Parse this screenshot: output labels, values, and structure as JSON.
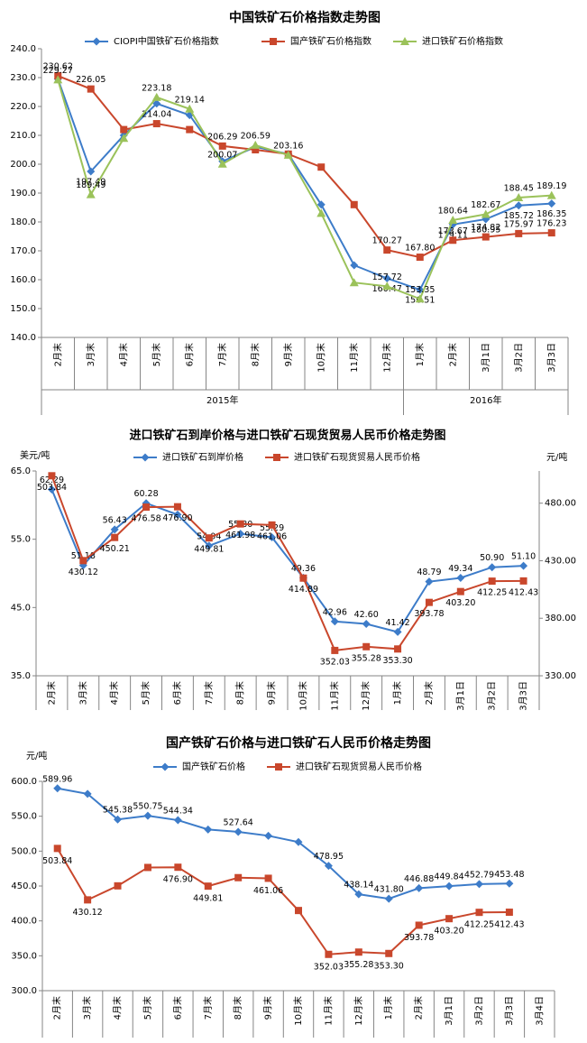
{
  "chart_data": [
    {
      "type": "line",
      "title": "中国铁矿石价格指数走势图",
      "categories": [
        "2月末",
        "3月末",
        "4月末",
        "5月末",
        "6月末",
        "7月末",
        "8月末",
        "9月末",
        "10月末",
        "11月末",
        "12月末",
        "1月末",
        "2月末",
        "3月1日",
        "3月2日",
        "3月3日"
      ],
      "category_groups": [
        {
          "label": "2015年",
          "count": 11
        },
        {
          "label": "2016年",
          "count": 5
        }
      ],
      "ylim": [
        140,
        240
      ],
      "yticks": [
        {
          "value": 140,
          "label": "140.0"
        },
        {
          "value": 150,
          "label": "150.0"
        },
        {
          "value": 160,
          "label": "160.0"
        },
        {
          "value": 170,
          "label": "170.0"
        },
        {
          "value": 180,
          "label": "180.0"
        },
        {
          "value": 190,
          "label": "190.0"
        },
        {
          "value": 200,
          "label": "200.0"
        },
        {
          "value": 210,
          "label": "210.0"
        },
        {
          "value": 220,
          "label": "220.0"
        },
        {
          "value": 230,
          "label": "230.0"
        },
        {
          "value": 240,
          "label": "240.0"
        }
      ],
      "grid": false,
      "series": [
        {
          "name": "CIOPI中国铁矿石价格指数",
          "color": "#3d7cc9",
          "marker": "diamond",
          "values": [
            229.5,
            197.49,
            210,
            221,
            217,
            201,
            206,
            203.5,
            186,
            165,
            160.47,
            156.51,
            179.11,
            180.95,
            185.72,
            186.35
          ],
          "value_labels": [
            null,
            "197.49",
            null,
            null,
            null,
            null,
            null,
            null,
            null,
            null,
            "160.47",
            "156.51",
            "179.11",
            "180.95",
            "185.72",
            "186.35"
          ]
        },
        {
          "name": "国产铁矿石价格指数",
          "color": "#c9472c",
          "marker": "square",
          "values": [
            230.62,
            226.05,
            212,
            214.04,
            212,
            206.29,
            205,
            203.5,
            199,
            186,
            170.27,
            167.8,
            173.67,
            174.82,
            175.97,
            176.23
          ],
          "value_labels": [
            "230.62",
            "226.05",
            null,
            "214.04",
            null,
            "206.29",
            null,
            null,
            null,
            null,
            "170.27",
            "167.80",
            "173.67",
            "174.82",
            "175.97",
            "176.23"
          ]
        },
        {
          "name": "进口铁矿石价格指数",
          "color": "#9bc25a",
          "marker": "triangle",
          "values": [
            229.27,
            189.49,
            209,
            223.18,
            219.14,
            200.07,
            206.59,
            203.16,
            183,
            159,
            157.72,
            153.35,
            180.64,
            182.67,
            188.45,
            189.19
          ],
          "value_labels": [
            "229.27",
            "189.49",
            null,
            "223.18",
            "219.14",
            "200.07",
            "206.59",
            "203.16",
            null,
            null,
            "157.72",
            "153.35",
            "180.64",
            "182.67",
            "188.45",
            "189.19"
          ]
        }
      ]
    },
    {
      "type": "line",
      "title": "进口铁矿石到岸价格与进口铁矿石现货贸易人民币价格走势图",
      "y_unit": "美元/吨",
      "y2_unit": "元/吨",
      "categories": [
        "2月末",
        "3月末",
        "4月末",
        "5月末",
        "6月末",
        "7月末",
        "8月末",
        "9月末",
        "10月末",
        "11月末",
        "12月末",
        "1月末",
        "2月末",
        "3月1日",
        "3月2日",
        "3月3日"
      ],
      "ylim": [
        35,
        65
      ],
      "yticks": [
        {
          "value": 35,
          "label": "35.0"
        },
        {
          "value": 45,
          "label": "45.0"
        },
        {
          "value": 55,
          "label": "55.0"
        },
        {
          "value": 65,
          "label": "65.0"
        }
      ],
      "y2lim": [
        330,
        508
      ],
      "y2ticks": [
        {
          "value": 330,
          "label": "330.00"
        },
        {
          "value": 380,
          "label": "380.00"
        },
        {
          "value": 430,
          "label": "430.00"
        },
        {
          "value": 480,
          "label": "480.00"
        }
      ],
      "grid": false,
      "series": [
        {
          "name": "进口铁矿石到岸价格",
          "color": "#3d7cc9",
          "marker": "diamond",
          "values": [
            62.29,
            51.18,
            56.43,
            60.28,
            58.6,
            54.04,
            55.8,
            55.29,
            49.36,
            42.96,
            42.6,
            41.42,
            48.79,
            49.34,
            50.9,
            51.1
          ],
          "value_labels": [
            "62.29",
            "51.18",
            "56.43",
            "60.28",
            null,
            "54.04",
            "55.80",
            "55.29",
            "49.36",
            "42.96",
            "42.60",
            "41.42",
            "48.79",
            "49.34",
            "50.90",
            "51.10"
          ]
        },
        {
          "name": "进口铁矿石现货贸易人民币价格",
          "color": "#c9472c",
          "marker": "square",
          "axis": "y2",
          "values": [
            503.84,
            430.12,
            450.21,
            476.58,
            476.9,
            449.81,
            461.98,
            461.06,
            414.89,
            352.03,
            355.28,
            353.3,
            393.78,
            403.2,
            412.25,
            412.43
          ],
          "value_labels": [
            "503.84",
            "430.12",
            "450.21",
            "476.58",
            "476.90",
            "449.81",
            "461.98",
            "461.06",
            "414.89",
            "352.03",
            "355.28",
            "353.30",
            "393.78",
            "403.20",
            "412.25",
            "412.43"
          ]
        }
      ]
    },
    {
      "type": "line",
      "title": "国产铁矿石价格与进口铁矿石人民币价格走势图",
      "y_unit": "元/吨",
      "categories": [
        "2月末",
        "3月末",
        "4月末",
        "5月末",
        "6月末",
        "7月末",
        "8月末",
        "9月末",
        "10月末",
        "11月末",
        "12月末",
        "1月末",
        "2月末",
        "3月1日",
        "3月2日",
        "3月3日",
        "3月4日"
      ],
      "ylim": [
        300,
        600
      ],
      "yticks": [
        {
          "value": 300,
          "label": "300.0"
        },
        {
          "value": 350,
          "label": "350.0"
        },
        {
          "value": 400,
          "label": "400.0"
        },
        {
          "value": 450,
          "label": "450.0"
        },
        {
          "value": 500,
          "label": "500.0"
        },
        {
          "value": 550,
          "label": "550.0"
        },
        {
          "value": 600,
          "label": "600.0"
        }
      ],
      "grid": false,
      "series": [
        {
          "name": "国产铁矿石价格",
          "color": "#3d7cc9",
          "marker": "diamond",
          "values": [
            589.96,
            582,
            545.38,
            550.75,
            544.34,
            531,
            527.64,
            522,
            513,
            478.95,
            438.14,
            431.8,
            446.88,
            449.84,
            452.79,
            453.48,
            null
          ],
          "value_labels": [
            "589.96",
            null,
            "545.38",
            "550.75",
            "544.34",
            null,
            "527.64",
            null,
            null,
            "478.95",
            "438.14",
            "431.80",
            "446.88",
            "449.84",
            "452.79",
            "453.48",
            null
          ]
        },
        {
          "name": "进口铁矿石现货贸易人民币价格",
          "color": "#c9472c",
          "marker": "square",
          "values": [
            503.84,
            430.12,
            450.21,
            476.58,
            476.9,
            449.81,
            461.98,
            461.06,
            414.89,
            352.03,
            355.28,
            353.3,
            393.78,
            403.2,
            412.25,
            412.43,
            null
          ],
          "value_labels": [
            "503.84",
            "430.12",
            null,
            null,
            "476.90",
            "449.81",
            null,
            "461.06",
            null,
            "352.03",
            "355.28",
            "353.30",
            "393.78",
            "403.20",
            "412.25",
            "412.43",
            null
          ]
        }
      ]
    }
  ]
}
